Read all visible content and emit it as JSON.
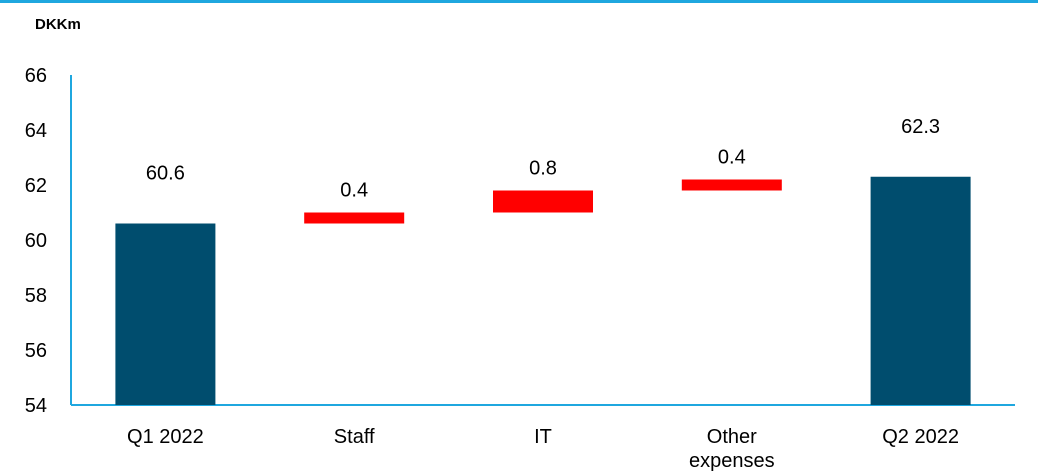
{
  "chart_data": {
    "type": "bar",
    "subtype": "waterfall",
    "unit_label": "DKKm",
    "categories": [
      "Q1 2022",
      "Staff",
      "IT",
      "Other expenses",
      "Q2 2022"
    ],
    "category_lines": [
      [
        "Q1 2022"
      ],
      [
        "Staff"
      ],
      [
        "IT"
      ],
      [
        "Other",
        "expenses"
      ],
      [
        "Q2 2022"
      ]
    ],
    "values": [
      60.6,
      0.4,
      0.8,
      0.4,
      62.3
    ],
    "data_labels": [
      "60.6",
      "0.4",
      "0.8",
      "0.4",
      "62.3"
    ],
    "bar_kinds": [
      "total",
      "increase",
      "increase",
      "increase",
      "total"
    ],
    "ylim": [
      54,
      66
    ],
    "yticks": [
      54,
      56,
      58,
      60,
      62,
      64,
      66
    ],
    "ytick_labels": [
      "54",
      "56",
      "58",
      "60",
      "62",
      "64",
      "66"
    ],
    "grid": false,
    "colors": {
      "total": "#004d6e",
      "increase": "#ff0000",
      "axis": "#1fa7df",
      "top_rule": "#1fa7df"
    }
  }
}
